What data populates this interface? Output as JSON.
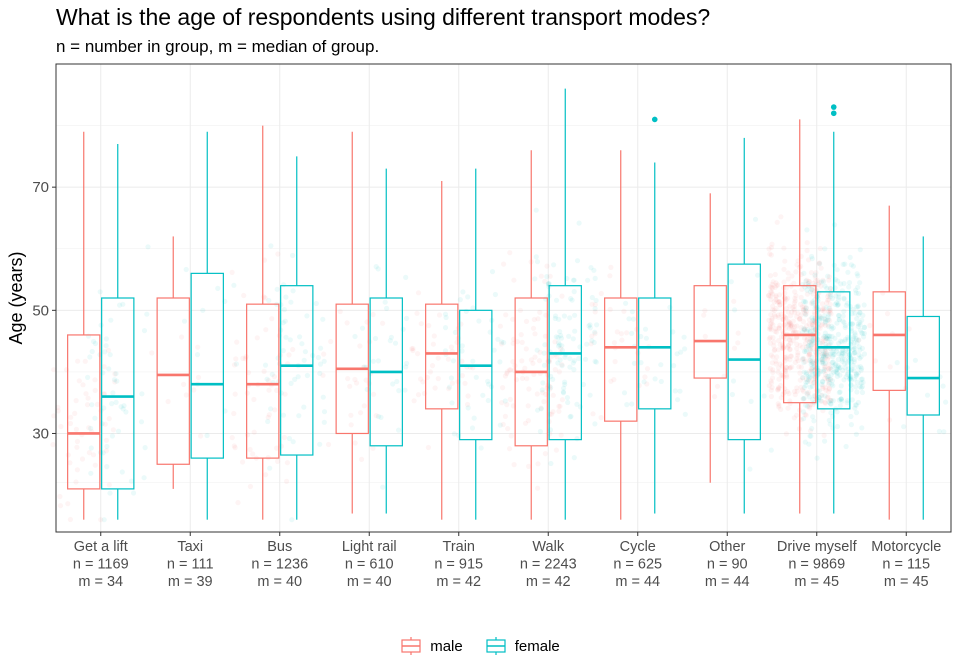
{
  "chart_data": {
    "type": "box",
    "title": "What is the age of respondents using different transport modes?",
    "subtitle": "n = number in group, m = median of group.",
    "xlabel": "",
    "ylabel": "Age (years)",
    "ylim": [
      14,
      90
    ],
    "yticks": [
      30,
      50,
      70
    ],
    "grid": true,
    "legend_position": "bottom",
    "colors": {
      "male": "#F8766D",
      "female": "#00BFC4"
    },
    "groups": [
      "male",
      "female"
    ],
    "categories": [
      {
        "label": "Get a lift",
        "n_label": "n = 1169",
        "m_label": "m = 34",
        "male": {
          "min": 16,
          "q1": 21,
          "median": 30,
          "q3": 46,
          "max": 79
        },
        "female": {
          "min": 16,
          "q1": 21,
          "median": 36,
          "q3": 52,
          "max": 77
        }
      },
      {
        "label": "Taxi",
        "n_label": "n = 111",
        "m_label": "m = 39",
        "male": {
          "min": 21,
          "q1": 25,
          "median": 39.5,
          "q3": 52,
          "max": 62
        },
        "female": {
          "min": 16,
          "q1": 26,
          "median": 38,
          "q3": 56,
          "max": 79
        }
      },
      {
        "label": "Bus",
        "n_label": "n = 1236",
        "m_label": "m = 40",
        "male": {
          "min": 16,
          "q1": 26,
          "median": 38,
          "q3": 51,
          "max": 80
        },
        "female": {
          "min": 16,
          "q1": 26.5,
          "median": 41,
          "q3": 54,
          "max": 75
        }
      },
      {
        "label": "Light rail",
        "n_label": "n = 610",
        "m_label": "m = 40",
        "male": {
          "min": 17,
          "q1": 30,
          "median": 40.5,
          "q3": 51,
          "max": 79
        },
        "female": {
          "min": 17,
          "q1": 28,
          "median": 40,
          "q3": 52,
          "max": 73
        }
      },
      {
        "label": "Train",
        "n_label": "n = 915",
        "m_label": "m = 42",
        "male": {
          "min": 16,
          "q1": 34,
          "median": 43,
          "q3": 51,
          "max": 71
        },
        "female": {
          "min": 16,
          "q1": 29,
          "median": 41,
          "q3": 50,
          "max": 73
        }
      },
      {
        "label": "Walk",
        "n_label": "n = 2243",
        "m_label": "m = 42",
        "male": {
          "min": 16,
          "q1": 28,
          "median": 40,
          "q3": 52,
          "max": 76
        },
        "female": {
          "min": 16,
          "q1": 29,
          "median": 43,
          "q3": 54,
          "max": 86
        }
      },
      {
        "label": "Cycle",
        "n_label": "n = 625",
        "m_label": "m = 44",
        "male": {
          "min": 16,
          "q1": 32,
          "median": 44,
          "q3": 52,
          "max": 76
        },
        "female": {
          "min": 17,
          "q1": 34,
          "median": 44,
          "q3": 52,
          "max": 74,
          "outliers": [
            81
          ]
        }
      },
      {
        "label": "Other",
        "n_label": "n = 90",
        "m_label": "m = 44",
        "male": {
          "min": 22,
          "q1": 39,
          "median": 45,
          "q3": 54,
          "max": 69
        },
        "female": {
          "min": 17,
          "q1": 29,
          "median": 42,
          "q3": 57.5,
          "max": 78
        }
      },
      {
        "label": "Drive myself",
        "n_label": "n = 9869",
        "m_label": "m = 45",
        "male": {
          "min": 17,
          "q1": 35,
          "median": 46,
          "q3": 54,
          "max": 81
        },
        "female": {
          "min": 17,
          "q1": 34,
          "median": 44,
          "q3": 53,
          "max": 79,
          "outliers": [
            82,
            83
          ]
        }
      },
      {
        "label": "Motorcycle",
        "n_label": "n = 115",
        "m_label": "m = 45",
        "male": {
          "min": 16,
          "q1": 37,
          "median": 46,
          "q3": 53,
          "max": 67
        },
        "female": {
          "min": 16,
          "q1": 33,
          "median": 39,
          "q3": 49,
          "max": 62
        }
      }
    ]
  }
}
